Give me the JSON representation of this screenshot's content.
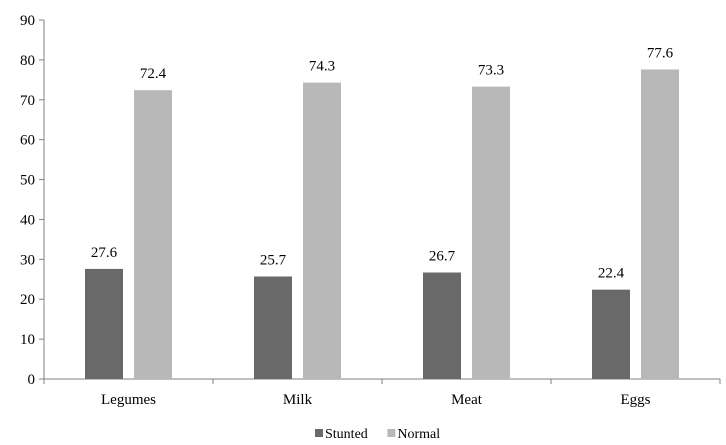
{
  "chart_data": {
    "type": "bar",
    "title": "",
    "xlabel": "",
    "ylabel": "",
    "categories": [
      "Legumes",
      "Milk",
      "Meat",
      "Eggs"
    ],
    "series": [
      {
        "name": "Stunted",
        "values": [
          27.6,
          25.7,
          26.7,
          22.4
        ],
        "color": "#696969"
      },
      {
        "name": "Normal",
        "values": [
          72.4,
          74.3,
          73.3,
          77.6
        ],
        "color": "#b8b8b8"
      }
    ],
    "ylim": [
      0,
      90
    ],
    "yticks": [
      0,
      10,
      20,
      30,
      40,
      50,
      60,
      70,
      80,
      90
    ],
    "grid": false,
    "legend_position": "bottom-center",
    "data_labels": true
  }
}
